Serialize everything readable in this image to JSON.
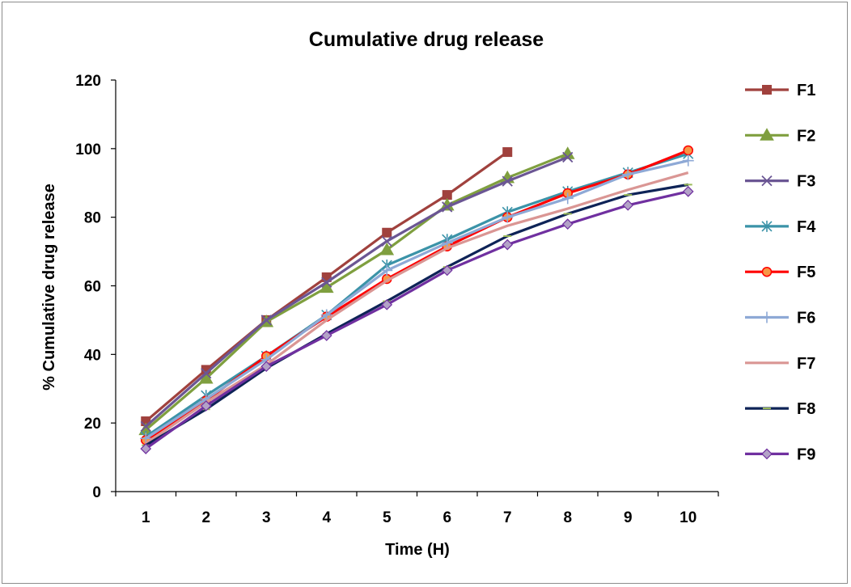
{
  "chart_data": {
    "type": "line",
    "title": "Cumulative drug release",
    "xlabel": "Time (H)",
    "ylabel": "% Cumulative  drug release",
    "x": [
      1,
      2,
      3,
      4,
      5,
      6,
      7,
      8,
      9,
      10
    ],
    "ylim": [
      0,
      120
    ],
    "yticks": [
      0,
      20,
      40,
      60,
      80,
      100,
      120
    ],
    "grid": false,
    "legend_position": "right",
    "series": [
      {
        "name": "F1",
        "color": "#A0413D",
        "marker": "square",
        "values": [
          20.5,
          35.5,
          50,
          62.5,
          75.5,
          86.5,
          99,
          null,
          null,
          null
        ]
      },
      {
        "name": "F2",
        "color": "#7F9F3F",
        "marker": "triangle",
        "values": [
          18,
          33,
          49.5,
          59.5,
          70.5,
          83.5,
          91.5,
          98.5,
          null,
          null
        ]
      },
      {
        "name": "F3",
        "color": "#6B5694",
        "marker": "x",
        "values": [
          19,
          34.5,
          50,
          61,
          73,
          83,
          90.5,
          97.5,
          null,
          null
        ]
      },
      {
        "name": "F4",
        "color": "#3B93A8",
        "marker": "star",
        "values": [
          16,
          28,
          39.5,
          51.5,
          66,
          73.5,
          81.5,
          87.5,
          93,
          98.5
        ]
      },
      {
        "name": "F5",
        "color": "#FF0000",
        "marker": "circle",
        "values": [
          15,
          26.5,
          39.5,
          51,
          62,
          71.5,
          80,
          87,
          92.5,
          99.5
        ]
      },
      {
        "name": "F6",
        "color": "#8EA9D6",
        "marker": "plus",
        "values": [
          15.5,
          27,
          38.5,
          51.5,
          64.5,
          72.5,
          80,
          85.5,
          92.5,
          96.5
        ]
      },
      {
        "name": "F7",
        "color": "#DA9694",
        "marker": "none",
        "values": [
          14,
          26,
          37,
          50,
          61.5,
          71,
          77.5,
          82.5,
          88,
          93
        ]
      },
      {
        "name": "F8",
        "color": "#0E2357",
        "marker": "dash",
        "values": [
          13.5,
          24,
          36,
          46,
          55.5,
          65.5,
          74.5,
          81,
          86.5,
          89.5
        ]
      },
      {
        "name": "F9",
        "color": "#7030A0",
        "marker": "diamond",
        "values": [
          12.5,
          25,
          36.5,
          45.5,
          54.5,
          64.5,
          72,
          78,
          83.5,
          87.5
        ]
      }
    ]
  }
}
